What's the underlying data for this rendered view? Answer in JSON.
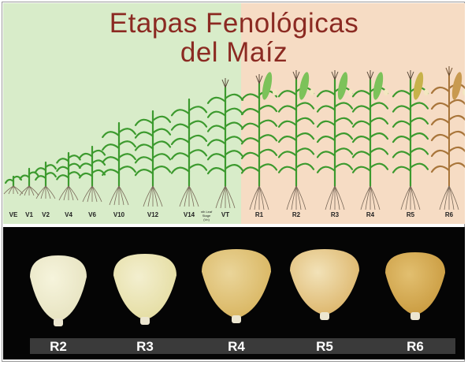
{
  "title_line1": "Etapas Fenológicas",
  "title_line2": "del Maíz",
  "stages": [
    {
      "label": "VE"
    },
    {
      "label": "V1"
    },
    {
      "label": "V2"
    },
    {
      "label": "V4"
    },
    {
      "label": "V6"
    },
    {
      "label": "V10"
    },
    {
      "label": "V12"
    },
    {
      "label": "V14"
    },
    {
      "label": "nth Leaf Stage (Vn)"
    },
    {
      "label": "VT"
    },
    {
      "label": "R1"
    },
    {
      "label": "R2"
    },
    {
      "label": "R3"
    },
    {
      "label": "R4"
    },
    {
      "label": "R5"
    },
    {
      "label": "R6"
    }
  ],
  "kernel_labels": [
    "R2",
    "R3",
    "R4",
    "R5",
    "R6"
  ],
  "colors": {
    "vegetative_bg": "#d8ecc9",
    "reproductive_bg": "#f6dcc4",
    "title": "#8b2a22",
    "leaf": "#3c9a2e",
    "root": "#7a6a5a"
  }
}
